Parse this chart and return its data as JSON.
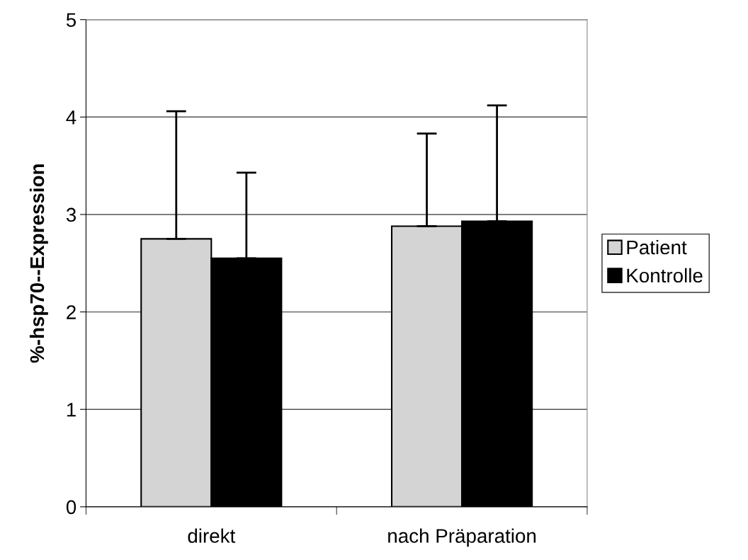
{
  "chart_data": {
    "type": "bar",
    "ylabel": "%-hsp70--Expression",
    "categories": [
      "direkt",
      "nach Präparation"
    ],
    "series": [
      {
        "name": "Patient",
        "color": "#d4d4d4",
        "values": [
          2.75,
          2.88
        ],
        "errors": [
          [
            2.75,
            4.06
          ],
          [
            2.88,
            3.83
          ]
        ]
      },
      {
        "name": "Kontrolle",
        "color": "#000000",
        "values": [
          2.55,
          2.93
        ],
        "errors": [
          [
            2.55,
            3.43
          ],
          [
            2.93,
            4.12
          ]
        ]
      }
    ],
    "ylim": [
      0,
      5
    ],
    "yticks": [
      0,
      1,
      2,
      3,
      4,
      5
    ],
    "grid": "y",
    "legend": "right"
  }
}
